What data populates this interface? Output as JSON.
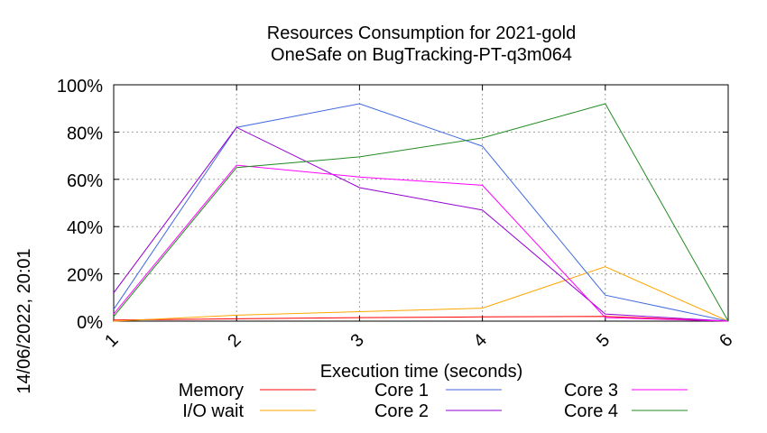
{
  "chart_data": {
    "type": "line",
    "title": "Resources Consumption for 2021-gold",
    "subtitle": "OneSafe on BugTracking-PT-q3m064",
    "side_label": "14/06/2022, 20:01",
    "xlabel": "Execution time (seconds)",
    "ylabel": "",
    "x": [
      1,
      2,
      3,
      4,
      5,
      6
    ],
    "x_tick_labels": [
      "1",
      "2",
      "3",
      "4",
      "5",
      "6"
    ],
    "xlim": [
      1,
      6
    ],
    "ylim": [
      0,
      100
    ],
    "y_ticks": [
      0,
      20,
      40,
      60,
      80,
      100
    ],
    "y_tick_labels": [
      "0%",
      "20%",
      "40%",
      "60%",
      "80%",
      "100%"
    ],
    "grid": true,
    "legend_position": "bottom",
    "series": [
      {
        "name": "Memory",
        "color": "#ff0000",
        "values": [
          0.5,
          1.0,
          1.5,
          1.8,
          2.0,
          0
        ]
      },
      {
        "name": "I/O wait",
        "color": "#ffa500",
        "values": [
          0,
          2.5,
          4.0,
          5.5,
          23,
          0
        ]
      },
      {
        "name": "Core 1",
        "color": "#4169e1",
        "values": [
          5,
          82,
          92,
          74,
          11,
          0
        ]
      },
      {
        "name": "Core 2",
        "color": "#9400d3",
        "values": [
          12,
          82,
          56.5,
          47,
          3,
          0
        ]
      },
      {
        "name": "Core 3",
        "color": "#ff00ff",
        "values": [
          3,
          66,
          61,
          57.5,
          1.5,
          0
        ]
      },
      {
        "name": "Core 4",
        "color": "#228b22",
        "values": [
          2,
          65,
          69.5,
          77.5,
          92,
          0
        ]
      }
    ]
  }
}
